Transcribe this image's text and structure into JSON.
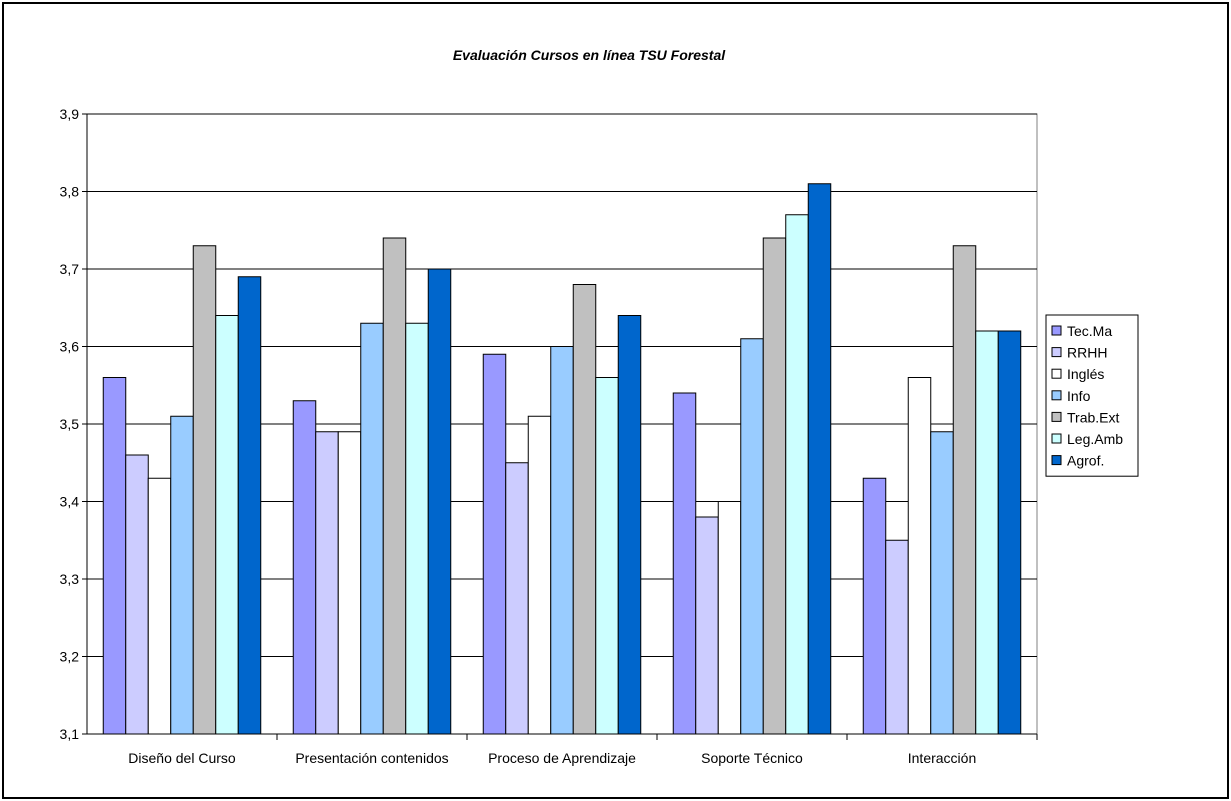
{
  "chart_data": {
    "type": "bar",
    "title": "Evaluación Cursos en línea TSU Forestal",
    "xlabel": "",
    "ylabel": "",
    "ylim": [
      3.1,
      3.9
    ],
    "yticks": [
      "3,1",
      "3,2",
      "3,3",
      "3,4",
      "3,5",
      "3,6",
      "3,7",
      "3,8",
      "3,9"
    ],
    "ytick_values": [
      3.1,
      3.2,
      3.3,
      3.4,
      3.5,
      3.6,
      3.7,
      3.8,
      3.9
    ],
    "grid": true,
    "legend_position": "right",
    "categories": [
      "Diseño del Curso",
      "Presentación contenidos",
      "Proceso de Aprendizaje",
      "Soporte Técnico",
      "Interacción"
    ],
    "series": [
      {
        "name": "Tec.Ma",
        "color": "#9999ff",
        "values": [
          3.56,
          3.53,
          3.59,
          3.54,
          3.43
        ]
      },
      {
        "name": "RRHH",
        "color": "#ccccff",
        "values": [
          3.46,
          3.49,
          3.45,
          3.38,
          3.35
        ]
      },
      {
        "name": "Inglés",
        "color": "#ffffff",
        "values": [
          3.43,
          3.49,
          3.51,
          3.4,
          3.56
        ]
      },
      {
        "name": "Info",
        "color": "#99ccff",
        "values": [
          3.51,
          3.63,
          3.6,
          3.61,
          3.49
        ]
      },
      {
        "name": "Trab.Ext",
        "color": "#c0c0c0",
        "values": [
          3.73,
          3.74,
          3.68,
          3.74,
          3.73
        ]
      },
      {
        "name": "Leg.Amb",
        "color": "#ccffff",
        "values": [
          3.64,
          3.63,
          3.56,
          3.77,
          3.62
        ]
      },
      {
        "name": "Agrof.",
        "color": "#0066cc",
        "values": [
          3.69,
          3.7,
          3.64,
          3.81,
          3.62
        ]
      }
    ]
  }
}
